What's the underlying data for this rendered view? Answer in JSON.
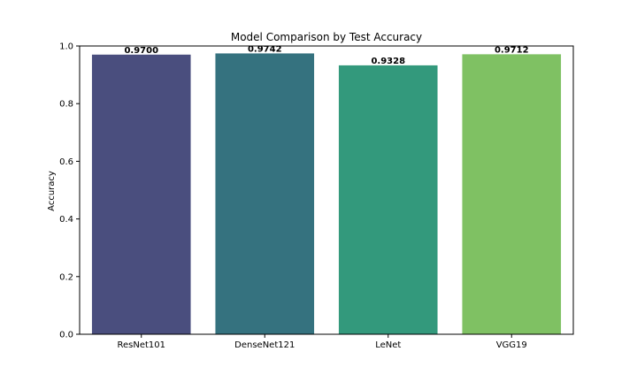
{
  "chart_data": {
    "type": "bar",
    "title": "Model Comparison by Test Accuracy",
    "xlabel": "",
    "ylabel": "Accuracy",
    "categories": [
      "ResNet101",
      "DenseNet121",
      "LeNet",
      "VGG19"
    ],
    "values": [
      0.97,
      0.9742,
      0.9328,
      0.9712
    ],
    "value_labels": [
      "0.9700",
      "0.9742",
      "0.9328",
      "0.9712"
    ],
    "colors": [
      "#4a4e7e",
      "#35727f",
      "#33997c",
      "#7fc163"
    ],
    "ylim": [
      0,
      1.0
    ],
    "yticks": [
      "0.0",
      "0.2",
      "0.4",
      "0.6",
      "0.8",
      "1.0"
    ],
    "grid": false,
    "legend": "none"
  }
}
